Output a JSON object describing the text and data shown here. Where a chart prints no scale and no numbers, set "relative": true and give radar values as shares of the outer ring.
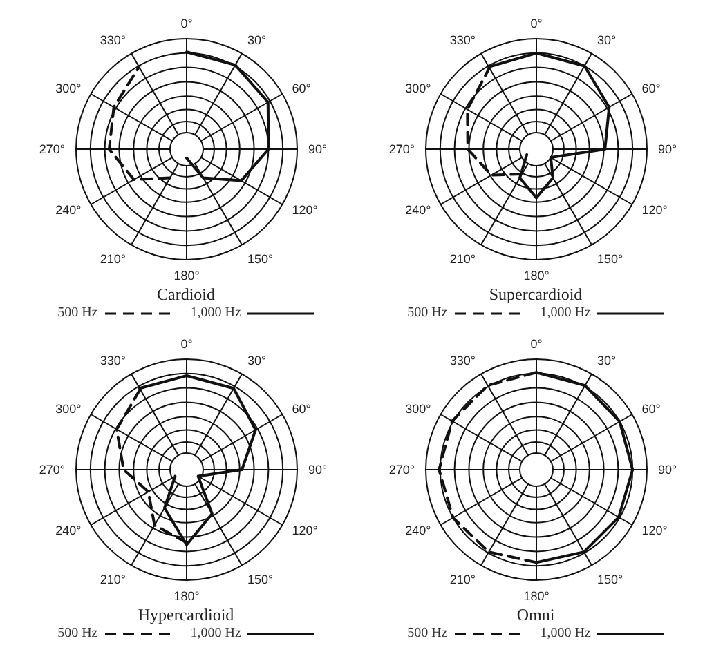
{
  "chart_data": [
    {
      "type": "radar",
      "title": "Cardioid",
      "categories": [
        "0°",
        "30°",
        "60°",
        "90°",
        "120°",
        "150°",
        "180°",
        "210°",
        "240°",
        "270°",
        "300°",
        "330°"
      ],
      "relative": true,
      "grid": true,
      "legend": "bottom",
      "series": [
        {
          "name": "500 Hz",
          "color": "#111111",
          "line_style": "dashed",
          "values": [
            null,
            null,
            null,
            null,
            null,
            null,
            null,
            0.3,
            0.55,
            0.7,
            0.76,
            0.86
          ]
        },
        {
          "name": "1,000 Hz",
          "color": "#111111",
          "line_style": "solid",
          "values": [
            0.88,
            0.88,
            0.85,
            0.74,
            0.57,
            0.3,
            0.08,
            null,
            null,
            null,
            null,
            null
          ]
        }
      ]
    },
    {
      "type": "radar",
      "title": "Supercardioid",
      "categories": [
        "0°",
        "30°",
        "60°",
        "90°",
        "120°",
        "150°",
        "180°",
        "210°",
        "240°",
        "270°",
        "300°",
        "330°"
      ],
      "relative": true,
      "grid": true,
      "legend": "bottom",
      "series": [
        {
          "name": "500 Hz",
          "color": "#111111",
          "line_style": "dashed",
          "values": [
            null,
            null,
            null,
            null,
            null,
            null,
            null,
            0.26,
            0.47,
            0.62,
            0.72,
            0.85
          ]
        },
        {
          "name": "1,000 Hz",
          "color": "#111111",
          "line_style": "solid",
          "values": [
            0.87,
            0.87,
            0.76,
            0.62,
            0.15,
            0.3,
            0.44,
            0.3,
            0.1,
            null,
            null,
            0.86
          ]
        }
      ]
    },
    {
      "type": "radar",
      "title": "Hypercardioid",
      "categories": [
        "0°",
        "30°",
        "60°",
        "90°",
        "120°",
        "150°",
        "180°",
        "210°",
        "240°",
        "270°",
        "300°",
        "330°"
      ],
      "relative": true,
      "grid": true,
      "legend": "bottom",
      "series": [
        {
          "name": "500 Hz",
          "color": "#111111",
          "line_style": "dashed",
          "values": [
            null,
            null,
            null,
            null,
            null,
            null,
            0.66,
            0.58,
            0.4,
            0.57,
            0.73,
            0.84
          ]
        },
        {
          "name": "1,000 Hz",
          "color": "#111111",
          "line_style": "solid",
          "values": [
            0.85,
            0.85,
            0.72,
            0.5,
            0.12,
            0.46,
            0.68,
            0.4,
            0.12,
            null,
            null,
            0.85
          ]
        }
      ]
    },
    {
      "type": "radar",
      "title": "Omni",
      "categories": [
        "0°",
        "30°",
        "60°",
        "90°",
        "120°",
        "150°",
        "180°",
        "210°",
        "240°",
        "270°",
        "300°",
        "330°"
      ],
      "relative": true,
      "grid": true,
      "legend": "bottom",
      "series": [
        {
          "name": "500 Hz",
          "color": "#111111",
          "line_style": "dashed",
          "values": [
            0.88,
            null,
            null,
            null,
            null,
            null,
            0.84,
            0.86,
            0.87,
            0.88,
            0.88,
            0.88
          ]
        },
        {
          "name": "1,000 Hz",
          "color": "#111111",
          "line_style": "solid",
          "values": [
            0.88,
            0.88,
            0.87,
            0.87,
            0.86,
            0.86,
            0.84,
            null,
            null,
            null,
            null,
            null
          ]
        }
      ]
    }
  ]
}
